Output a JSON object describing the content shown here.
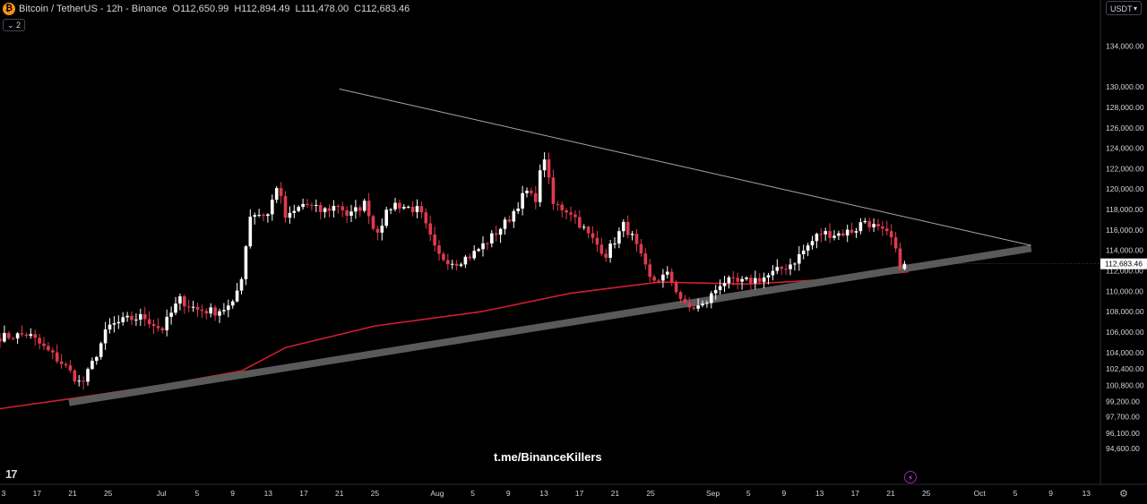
{
  "header": {
    "symbol_badge": "₿",
    "title": "Bitcoin / TetherUS - 12h - Binance",
    "open_label": "O",
    "open": "112,650.99",
    "high_label": "H",
    "high": "112,894.49",
    "low_label": "L",
    "low": "111,478.00",
    "close_label": "C",
    "close": "112,683.46",
    "indicator_toggle": "⌄ 2"
  },
  "currency": "USDT",
  "currency_chevron": "▾",
  "tv_logo": "17",
  "watermark": "t.me/BinanceKillers",
  "bolt_icon": "⚡",
  "gear_icon": "⚙",
  "colors": {
    "bg": "#000000",
    "up": "#ffffff",
    "down": "#e03a4e",
    "ma": "#d11f2f",
    "trend_support": "#5a5a5a",
    "trend_resistance": "#a8a8a8",
    "axis_text": "#d1d4dc"
  },
  "chart_data": {
    "type": "candlestick",
    "timeframe": "12h",
    "y_axis_ticks": [
      "134,000.00",
      "130,000.00",
      "128,000.00",
      "126,000.00",
      "124,000.00",
      "122,000.00",
      "120,000.00",
      "118,000.00",
      "116,000.00",
      "114,000.00",
      "112,000.00",
      "110,000.00",
      "108,000.00",
      "106,000.00",
      "104,000.00",
      "102,400.00",
      "100,800.00",
      "99,200.00",
      "97,700.00",
      "96,100.00",
      "94,600.00"
    ],
    "x_axis_ticks": [
      "3",
      "17",
      "21",
      "25",
      "Jul",
      "5",
      "9",
      "13",
      "17",
      "21",
      "25",
      "Aug",
      "5",
      "9",
      "13",
      "17",
      "21",
      "25",
      "Sep",
      "5",
      "9",
      "13",
      "17",
      "21",
      "25",
      "Oct",
      "5",
      "9",
      "13"
    ],
    "last_price": "112,683.46",
    "segments": [
      [
        "2025-06-10",
        106000
      ],
      [
        "2025-06-13",
        105500
      ],
      [
        "2025-06-16",
        105800
      ],
      [
        "2025-06-18",
        104300
      ],
      [
        "2025-06-20",
        102800
      ],
      [
        "2025-06-22",
        100800
      ],
      [
        "2025-06-23",
        102500
      ],
      [
        "2025-06-25",
        106500
      ],
      [
        "2025-06-27",
        107200
      ],
      [
        "2025-06-29",
        107500
      ],
      [
        "2025-07-01",
        106200
      ],
      [
        "2025-07-03",
        109200
      ],
      [
        "2025-07-05",
        108200
      ],
      [
        "2025-07-07",
        108000
      ],
      [
        "2025-07-09",
        108600
      ],
      [
        "2025-07-10",
        111500
      ],
      [
        "2025-07-11",
        117600
      ],
      [
        "2025-07-13",
        117500
      ],
      [
        "2025-07-14",
        120500
      ],
      [
        "2025-07-15",
        117000
      ],
      [
        "2025-07-17",
        118600
      ],
      [
        "2025-07-19",
        117800
      ],
      [
        "2025-07-21",
        118500
      ],
      [
        "2025-07-22",
        117300
      ],
      [
        "2025-07-24",
        118700
      ],
      [
        "2025-07-25",
        115600
      ],
      [
        "2025-07-27",
        118600
      ],
      [
        "2025-07-30",
        117900
      ],
      [
        "2025-08-01",
        113500
      ],
      [
        "2025-08-03",
        112800
      ],
      [
        "2025-08-05",
        113600
      ],
      [
        "2025-08-07",
        115200
      ],
      [
        "2025-08-09",
        117000
      ],
      [
        "2025-08-11",
        119800
      ],
      [
        "2025-08-12",
        118800
      ],
      [
        "2025-08-13",
        123500
      ],
      [
        "2025-08-14",
        118500
      ],
      [
        "2025-08-16",
        117800
      ],
      [
        "2025-08-18",
        115500
      ],
      [
        "2025-08-20",
        113600
      ],
      [
        "2025-08-22",
        116500
      ],
      [
        "2025-08-23",
        115200
      ],
      [
        "2025-08-25",
        111000
      ],
      [
        "2025-08-27",
        111600
      ],
      [
        "2025-08-29",
        108300
      ],
      [
        "2025-08-31",
        108600
      ],
      [
        "2025-09-02",
        111000
      ],
      [
        "2025-09-04",
        110800
      ],
      [
        "2025-09-07",
        111400
      ],
      [
        "2025-09-10",
        112800
      ],
      [
        "2025-09-13",
        115700
      ],
      [
        "2025-09-15",
        115600
      ],
      [
        "2025-09-17",
        116000
      ],
      [
        "2025-09-18",
        117000
      ],
      [
        "2025-09-20",
        115800
      ],
      [
        "2025-09-21",
        115300
      ],
      [
        "2025-09-22",
        112600
      ],
      [
        "2025-09-23",
        112683
      ]
    ],
    "moving_average": [
      [
        "2025-06-03",
        98500
      ],
      [
        "2025-06-21",
        99500
      ],
      [
        "2025-07-01",
        100800
      ],
      [
        "2025-07-10",
        102200
      ],
      [
        "2025-07-15",
        104500
      ],
      [
        "2025-07-25",
        106600
      ],
      [
        "2025-08-06",
        108000
      ],
      [
        "2025-08-16",
        109800
      ],
      [
        "2025-08-26",
        110900
      ],
      [
        "2025-09-05",
        110700
      ],
      [
        "2025-09-15",
        111200
      ],
      [
        "2025-09-23",
        111900
      ]
    ],
    "support_line": [
      [
        "2025-06-21",
        99100
      ],
      [
        "2025-10-08",
        114200
      ]
    ],
    "resistance_line": [
      [
        "2025-07-21",
        129800
      ],
      [
        "2025-10-08",
        114400
      ]
    ]
  }
}
